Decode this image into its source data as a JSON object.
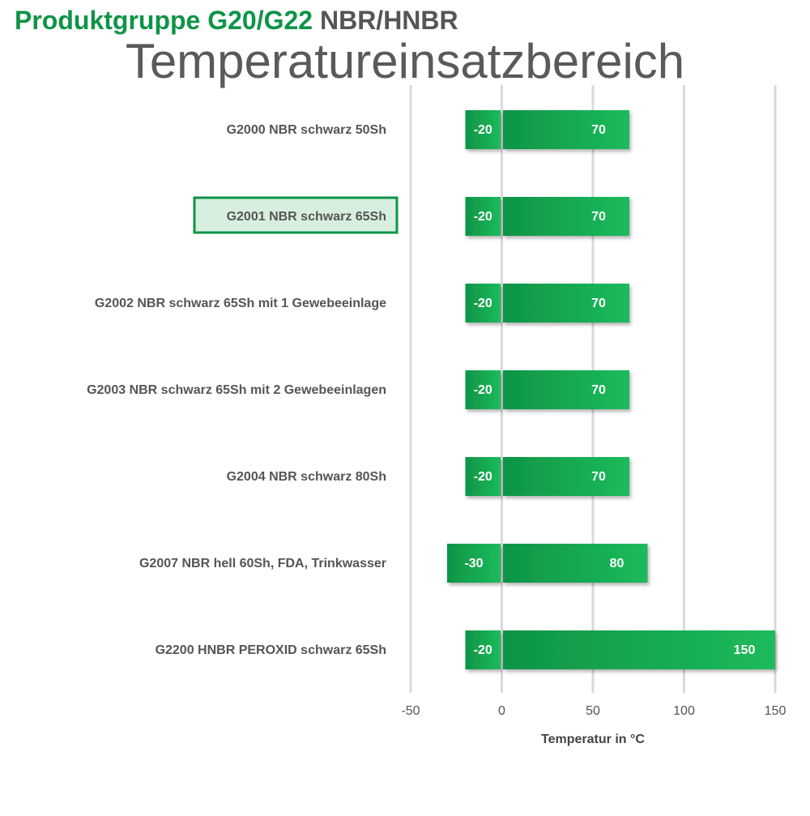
{
  "chart_data": {
    "type": "range-bar",
    "title": "Produktgruppe G20/G22",
    "title_material": "NBR/HNBR",
    "subtitle": "Temperatureinsatzbereich",
    "x_label": "Temperatur in °C",
    "categories": [
      "G2000 NBR schwarz 50Sh",
      "G2001 NBR schwarz 65Sh",
      "G2002 NBR schwarz 65Sh mit 1 Gewebeeinlage",
      "G2003 NBR schwarz 65Sh mit 2 Gewebeeinlagen",
      "G2004 NBR schwarz 80Sh",
      "G2007 NBR hell 60Sh, FDA, Trinkwasser",
      "G2200 HNBR PEROXID schwarz 65Sh"
    ],
    "series": [
      {
        "color": "#14a04c",
        "values": [
          -20,
          -20,
          -20,
          -20,
          -20,
          -30,
          -20
        ]
      },
      {
        "color": "#14a04c",
        "values": [
          70,
          70,
          70,
          70,
          70,
          80,
          150
        ]
      }
    ],
    "highlight": 1,
    "xlim": [
      -50,
      150
    ],
    "xticks": [
      -50,
      0,
      50,
      100,
      150
    ],
    "grid": true
  }
}
